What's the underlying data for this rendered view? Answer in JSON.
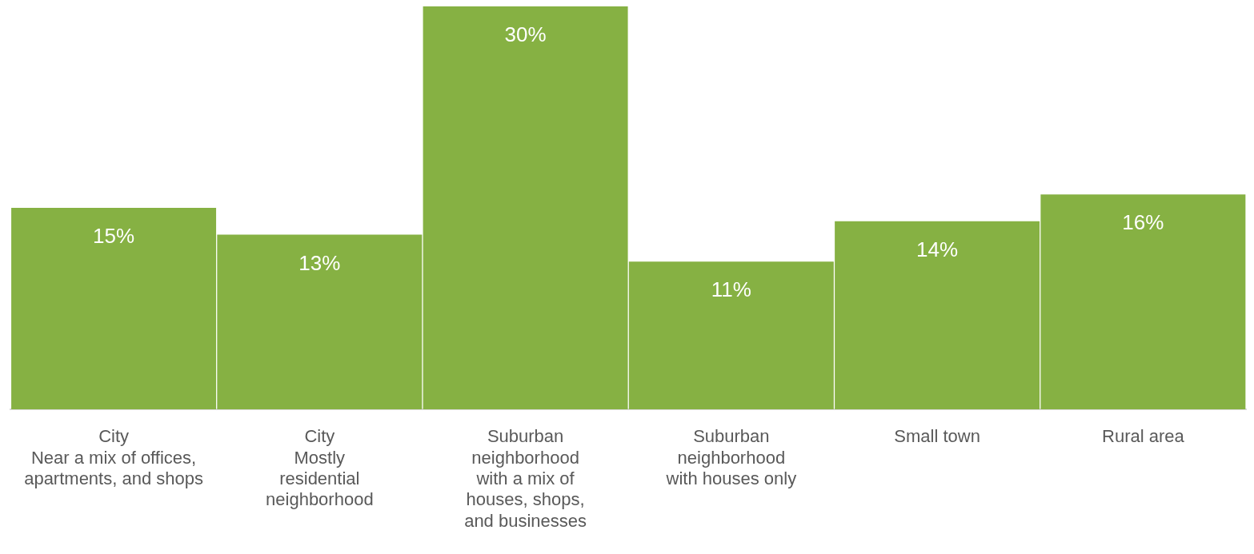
{
  "chart_data": {
    "type": "bar",
    "categories": [
      "City\nNear a mix of offices,\napartments, and shops",
      "City\nMostly\nresidential\nneighborhood",
      "Suburban\nneighborhood\nwith a mix of\nhouses, shops,\nand businesses",
      "Suburban\nneighborhood\nwith houses only",
      "Small town",
      "Rural area"
    ],
    "values": [
      15,
      13,
      30,
      11,
      14,
      16
    ],
    "value_labels": [
      "15%",
      "13%",
      "30%",
      "11%",
      "14%",
      "16%"
    ],
    "color": "#86b143",
    "ylim": [
      0,
      30
    ],
    "grid": false,
    "legend": false
  }
}
